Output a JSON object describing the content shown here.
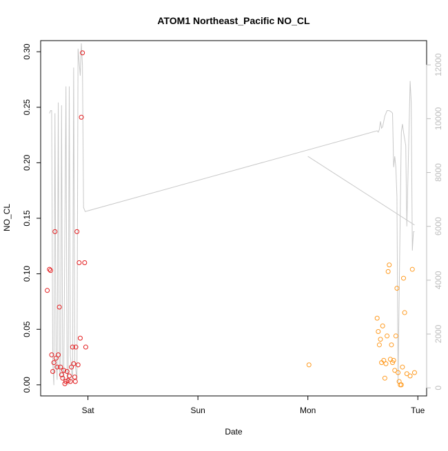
{
  "chart_data": {
    "type": "scatter",
    "title": "ATOM1 Northeast_Pacific NO_CL",
    "xlabel": "Date",
    "ylabel": "NO_CL",
    "x_ticks": [
      "Sat",
      "Sun",
      "Mon",
      "Tue"
    ],
    "x_tick_values": [
      2.0,
      3.0,
      4.0,
      5.0
    ],
    "xlim": [
      1.57,
      5.08
    ],
    "ylim": [
      -0.01,
      0.31
    ],
    "y_ticks": [
      0.0,
      0.05,
      0.1,
      0.15,
      0.2,
      0.25,
      0.3
    ],
    "y_tick_labels": [
      "0.00",
      "0.05",
      "0.10",
      "0.15",
      "0.20",
      "0.25",
      "0.30"
    ],
    "y2lim": [
      -300,
      12900
    ],
    "y2_ticks": [
      0,
      2000,
      4000,
      6000,
      8000,
      10000,
      12000
    ],
    "y2_tick_labels": [
      "0",
      "2000",
      "4000",
      "6000",
      "8000",
      "10000",
      "12000"
    ],
    "grid": false,
    "colors": {
      "series_1": "#e31a1c",
      "series_2": "#ff9a1f",
      "series_3": "#ff9a1f",
      "altitude": "#c8c8c8",
      "right_axis": "#bdbdbd"
    },
    "series": [
      {
        "color": "#e31a1c",
        "points": [
          [
            1.63,
            0.085
          ],
          [
            1.65,
            0.104
          ],
          [
            1.66,
            0.103
          ],
          [
            1.67,
            0.027
          ],
          [
            1.68,
            0.012
          ],
          [
            1.69,
            0.02
          ],
          [
            1.7,
            0.138
          ],
          [
            1.71,
            0.024
          ],
          [
            1.72,
            0.016
          ],
          [
            1.73,
            0.027
          ],
          [
            1.74,
            0.07
          ],
          [
            1.75,
            0.016
          ],
          [
            1.76,
            0.009
          ],
          [
            1.77,
            0.006
          ],
          [
            1.78,
            0.013
          ],
          [
            1.79,
            0.001
          ],
          [
            1.8,
            0.003
          ],
          [
            1.81,
            0.012
          ],
          [
            1.82,
            0.004
          ],
          [
            1.83,
            0.008
          ],
          [
            1.84,
            0.003
          ],
          [
            1.85,
            0.016
          ],
          [
            1.86,
            0.034
          ],
          [
            1.87,
            0.019
          ],
          [
            1.88,
            0.007
          ],
          [
            1.885,
            0.003
          ],
          [
            1.89,
            0.034
          ],
          [
            1.9,
            0.138
          ],
          [
            1.91,
            0.018
          ],
          [
            1.92,
            0.11
          ],
          [
            1.93,
            0.042
          ],
          [
            1.94,
            0.241
          ],
          [
            1.95,
            0.299
          ],
          [
            1.97,
            0.11
          ],
          [
            1.98,
            0.034
          ]
        ]
      },
      {
        "color": "#ff9a1f",
        "points": [
          [
            4.01,
            0.018
          ]
        ]
      },
      {
        "color": "#ff9a1f",
        "points": [
          [
            4.63,
            0.06
          ],
          [
            4.64,
            0.048
          ],
          [
            4.65,
            0.036
          ],
          [
            4.66,
            0.041
          ],
          [
            4.67,
            0.02
          ],
          [
            4.68,
            0.053
          ],
          [
            4.69,
            0.022
          ],
          [
            4.7,
            0.006
          ],
          [
            4.71,
            0.019
          ],
          [
            4.72,
            0.044
          ],
          [
            4.73,
            0.102
          ],
          [
            4.74,
            0.108
          ],
          [
            4.75,
            0.023
          ],
          [
            4.76,
            0.036
          ],
          [
            4.77,
            0.02
          ],
          [
            4.78,
            0.022
          ],
          [
            4.79,
            0.013
          ],
          [
            4.8,
            0.044
          ],
          [
            4.81,
            0.087
          ],
          [
            4.82,
            0.011
          ],
          [
            4.83,
            0.003
          ],
          [
            4.84,
            0.0
          ],
          [
            4.85,
            0.0
          ],
          [
            4.86,
            0.016
          ],
          [
            4.87,
            0.096
          ],
          [
            4.88,
            0.065
          ],
          [
            4.9,
            0.01
          ],
          [
            4.93,
            0.008
          ],
          [
            4.95,
            0.104
          ],
          [
            4.97,
            0.011
          ]
        ]
      }
    ],
    "altitude_line": {
      "color": "#c8c8c8",
      "segments": [
        [
          [
            1.65,
            10200
          ],
          [
            1.66,
            10300
          ],
          [
            1.67,
            10300
          ],
          [
            1.68,
            900
          ],
          [
            1.69,
            100
          ],
          [
            1.7,
            10200
          ],
          [
            1.71,
            1000
          ],
          [
            1.72,
            300
          ],
          [
            1.73,
            10600
          ],
          [
            1.74,
            700
          ],
          [
            1.75,
            400
          ],
          [
            1.76,
            10500
          ],
          [
            1.77,
            800
          ],
          [
            1.78,
            200
          ],
          [
            1.8,
            11200
          ],
          [
            1.81,
            600
          ],
          [
            1.82,
            100
          ],
          [
            1.83,
            11200
          ],
          [
            1.84,
            1200
          ],
          [
            1.86,
            200
          ],
          [
            1.87,
            11900
          ],
          [
            1.88,
            1000
          ],
          [
            1.9,
            300
          ],
          [
            1.91,
            12600
          ],
          [
            1.93,
            11600
          ],
          [
            1.94,
            12800
          ],
          [
            1.95,
            12000
          ],
          [
            1.96,
            6700
          ],
          [
            1.975,
            6550
          ],
          [
            4.63,
            9550
          ],
          [
            4.64,
            9500
          ],
          [
            4.65,
            9600
          ],
          [
            4.66,
            9900
          ],
          [
            4.67,
            9650
          ],
          [
            4.68,
            9700
          ],
          [
            4.7,
            10100
          ],
          [
            4.72,
            10300
          ],
          [
            4.74,
            10300
          ],
          [
            4.76,
            10250
          ],
          [
            4.77,
            10200
          ],
          [
            4.78,
            8200
          ],
          [
            4.79,
            8600
          ],
          [
            4.8,
            8200
          ],
          [
            4.81,
            7100
          ],
          [
            4.82,
            200
          ],
          [
            4.84,
            6500
          ],
          [
            4.85,
            9500
          ],
          [
            4.86,
            9800
          ],
          [
            4.87,
            9500
          ],
          [
            4.89,
            9000
          ],
          [
            4.9,
            6000
          ],
          [
            4.92,
            9600
          ],
          [
            4.93,
            11400
          ],
          [
            4.94,
            10600
          ],
          [
            4.95,
            5100
          ],
          [
            4.96,
            5800
          ],
          [
            4.97,
            5800
          ]
        ],
        [
          [
            4.0,
            8600
          ],
          [
            4.97,
            6050
          ]
        ]
      ]
    }
  }
}
